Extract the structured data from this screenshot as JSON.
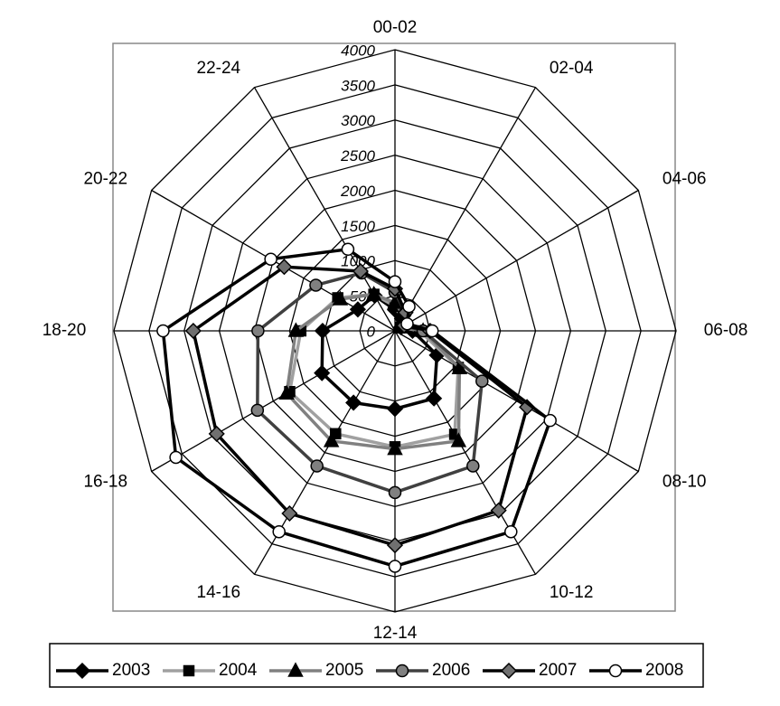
{
  "chart_data": {
    "type": "radar",
    "categories": [
      "00-02",
      "02-04",
      "04-06",
      "06-08",
      "08-10",
      "10-12",
      "12-14",
      "14-16",
      "16-18",
      "18-20",
      "20-22",
      "22-24"
    ],
    "ylim": [
      0,
      4000
    ],
    "yticks": [
      0,
      500,
      1000,
      1500,
      2000,
      2500,
      3000,
      3500,
      4000
    ],
    "grid": true,
    "legend": "bottom",
    "series": [
      {
        "name": "2003",
        "color": "#000000",
        "marker": "diamond",
        "marker_fill": "#000000",
        "values": [
          300,
          200,
          100,
          250,
          690,
          1110,
          1110,
          1180,
          1200,
          1030,
          610,
          580
        ]
      },
      {
        "name": "2004",
        "color": "#a0a0a0",
        "marker": "square",
        "marker_fill": "#000000",
        "values": [
          350,
          200,
          100,
          350,
          1040,
          1700,
          1650,
          1690,
          1730,
          1340,
          940,
          600
        ]
      },
      {
        "name": "2005",
        "color": "#808080",
        "marker": "triangle",
        "marker_fill": "#000000",
        "values": [
          400,
          250,
          100,
          400,
          1060,
          1810,
          1680,
          1810,
          1780,
          1410,
          900,
          600
        ]
      },
      {
        "name": "2006",
        "color": "#404040",
        "marker": "circle",
        "marker_fill": "#808080",
        "values": [
          550,
          300,
          150,
          400,
          1430,
          2220,
          2300,
          2220,
          2260,
          1950,
          1300,
          950
        ]
      },
      {
        "name": "2007",
        "color": "#000000",
        "marker": "diamond",
        "marker_fill": "#707070",
        "values": [
          600,
          300,
          150,
          500,
          2170,
          2950,
          3050,
          3000,
          2930,
          2870,
          1820,
          980
        ]
      },
      {
        "name": "2008",
        "color": "#000000",
        "marker": "circle",
        "marker_fill": "#ffffff",
        "values": [
          700,
          400,
          200,
          530,
          2550,
          3300,
          3350,
          3300,
          3600,
          3300,
          2040,
          1340
        ]
      }
    ]
  }
}
